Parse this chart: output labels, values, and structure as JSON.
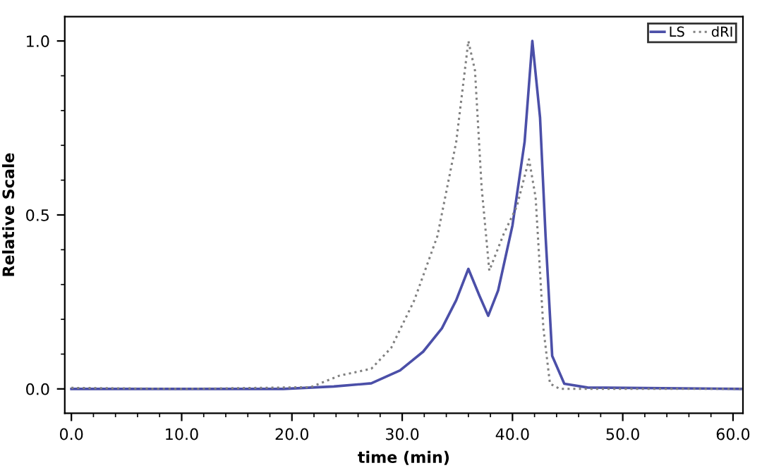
{
  "chart_data": {
    "type": "line",
    "xlabel": "time (min)",
    "ylabel": "Relative Scale",
    "xlim": [
      -0.6,
      60.9
    ],
    "ylim": [
      -0.07,
      1.07
    ],
    "xticks": [
      {
        "value": 0,
        "label": "0.0"
      },
      {
        "value": 10,
        "label": "10.0"
      },
      {
        "value": 20,
        "label": "20.0"
      },
      {
        "value": 30,
        "label": "30.0"
      },
      {
        "value": 40,
        "label": "40.0"
      },
      {
        "value": 50,
        "label": "50.0"
      },
      {
        "value": 60,
        "label": "60.0"
      }
    ],
    "yticks": [
      {
        "value": 0,
        "label": "0.0"
      },
      {
        "value": 0.5,
        "label": "0.5"
      },
      {
        "value": 1,
        "label": "1.0"
      }
    ],
    "grid": false,
    "legend": "top right",
    "marker": "none",
    "series": [
      {
        "name": "LS",
        "color": "#4b4fa8",
        "line_style": "solid",
        "x": [
          0,
          10,
          19.2,
          23.8,
          27.2,
          29.8,
          31.9,
          33.6,
          34.9,
          36.0,
          37.0,
          37.8,
          38.7,
          40.0,
          41.1,
          41.8,
          42.5,
          43.0,
          43.6,
          44.7,
          46.8,
          60.7
        ],
        "values": [
          0,
          0,
          0,
          0.007,
          0.016,
          0.053,
          0.107,
          0.174,
          0.255,
          0.345,
          0.268,
          0.21,
          0.283,
          0.47,
          0.71,
          1.0,
          0.78,
          0.44,
          0.095,
          0.015,
          0.004,
          0
        ]
      },
      {
        "name": "dRI",
        "color": "#808080",
        "line_style": "dotted",
        "x": [
          0,
          10,
          21.7,
          24.3,
          27.2,
          29.0,
          31.1,
          33.2,
          34.9,
          36.0,
          36.6,
          37.2,
          37.9,
          39.2,
          40.4,
          41.5,
          42.1,
          42.8,
          43.4,
          44.3,
          60.7
        ],
        "values": [
          0.003,
          0,
          0.005,
          0.038,
          0.058,
          0.118,
          0.255,
          0.44,
          0.71,
          1.0,
          0.915,
          0.58,
          0.34,
          0.445,
          0.525,
          0.66,
          0.55,
          0.175,
          0.015,
          0,
          0
        ]
      }
    ]
  }
}
